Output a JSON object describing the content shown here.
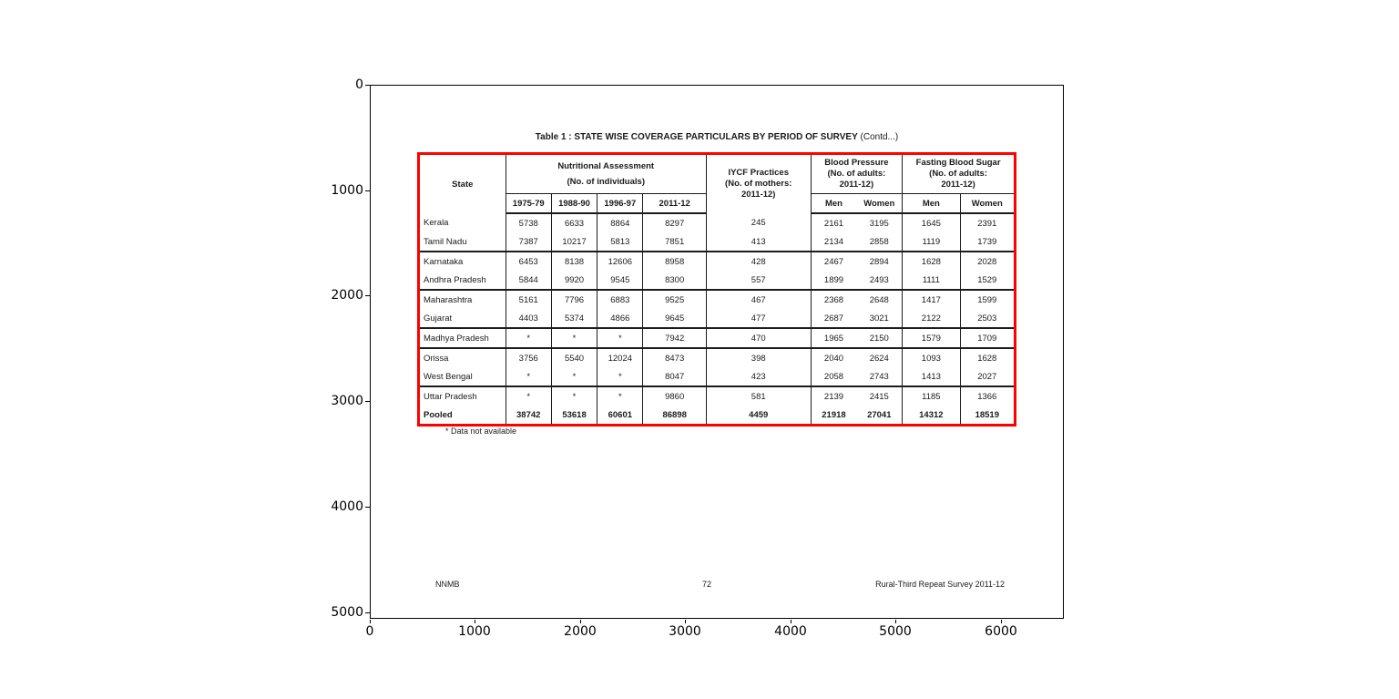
{
  "figure": {
    "x_ticks": [
      "0",
      "1000",
      "2000",
      "3000",
      "4000",
      "5000",
      "6000"
    ],
    "y_ticks": [
      "0",
      "1000",
      "2000",
      "3000",
      "4000",
      "5000"
    ]
  },
  "doc": {
    "title": "Table 1 : STATE WISE COVERAGE PARTICULARS BY PERIOD OF SURVEY",
    "title_suffix": " (Contd...)",
    "footnote": "* Data not available",
    "footer_left": "NNMB",
    "footer_center": "72",
    "footer_right": "Rural-Third Repeat Survey 2011-12"
  },
  "table": {
    "border_color": "#ff0000",
    "header": {
      "state": "State",
      "nutritional_line1": "Nutritional Assessment",
      "nutritional_line2": "(No. of individuals)",
      "years": [
        "1975-79",
        "1988-90",
        "1996-97",
        "2011-12"
      ],
      "iycf_line1": "IYCF Practices",
      "iycf_line2": "(No. of mothers:",
      "iycf_line3": "2011-12)",
      "bp_line1": "Blood Pressure",
      "bp_line2": "(No. of adults:",
      "bp_line3": "2011-12)",
      "fbs_line1": "Fasting  Blood Sugar",
      "fbs_line2": "(No. of adults:",
      "fbs_line3": "2011-12)",
      "men": "Men",
      "women": "Women"
    },
    "rows": [
      {
        "state": "Kerala",
        "values": [
          "5738",
          "6633",
          "8864",
          "8297",
          "245",
          "2161",
          "3195",
          "1645",
          "2391"
        ],
        "group_end": false,
        "bold": false
      },
      {
        "state": "Tamil Nadu",
        "values": [
          "7387",
          "10217",
          "5813",
          "7851",
          "413",
          "2134",
          "2858",
          "1119",
          "1739"
        ],
        "group_end": true,
        "bold": false
      },
      {
        "state": "Karnataka",
        "values": [
          "6453",
          "8138",
          "12606",
          "8958",
          "428",
          "2467",
          "2894",
          "1628",
          "2028"
        ],
        "group_end": false,
        "bold": false
      },
      {
        "state": "Andhra Pradesh",
        "values": [
          "5844",
          "9920",
          "9545",
          "8300",
          "557",
          "1899",
          "2493",
          "1111",
          "1529"
        ],
        "group_end": true,
        "bold": false
      },
      {
        "state": "Maharashtra",
        "values": [
          "5161",
          "7796",
          "6883",
          "9525",
          "467",
          "2368",
          "2648",
          "1417",
          "1599"
        ],
        "group_end": false,
        "bold": false
      },
      {
        "state": "Gujarat",
        "values": [
          "4403",
          "5374",
          "4866",
          "9645",
          "477",
          "2687",
          "3021",
          "2122",
          "2503"
        ],
        "group_end": true,
        "bold": false
      },
      {
        "state": "Madhya Pradesh",
        "values": [
          "*",
          "*",
          "*",
          "7942",
          "470",
          "1965",
          "2150",
          "1579",
          "1709"
        ],
        "group_end": true,
        "bold": false
      },
      {
        "state": "Orissa",
        "values": [
          "3756",
          "5540",
          "12024",
          "8473",
          "398",
          "2040",
          "2624",
          "1093",
          "1628"
        ],
        "group_end": false,
        "bold": false
      },
      {
        "state": "West Bengal",
        "values": [
          "*",
          "*",
          "*",
          "8047",
          "423",
          "2058",
          "2743",
          "1413",
          "2027"
        ],
        "group_end": true,
        "bold": false
      },
      {
        "state": "Uttar Pradesh",
        "values": [
          "*",
          "*",
          "*",
          "9860",
          "581",
          "2139",
          "2415",
          "1185",
          "1366"
        ],
        "group_end": false,
        "bold": false
      },
      {
        "state": "Pooled",
        "values": [
          "38742",
          "53618",
          "60601",
          "86898",
          "4459",
          "21918",
          "27041",
          "14312",
          "18519"
        ],
        "group_end": false,
        "bold": true
      }
    ]
  }
}
